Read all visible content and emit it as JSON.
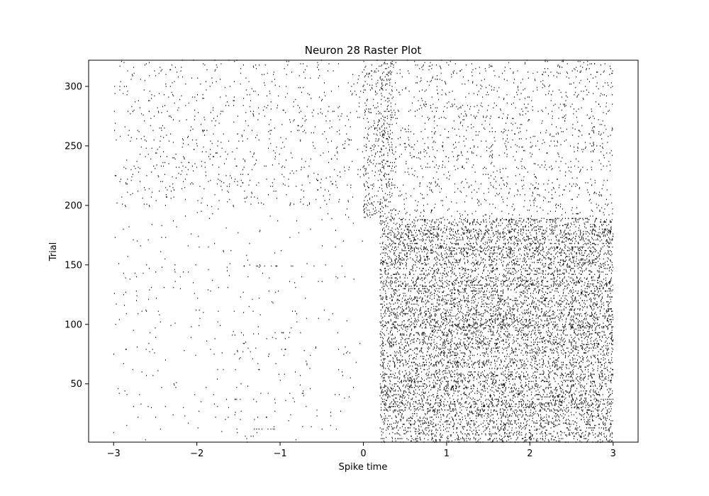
{
  "chart_data": {
    "type": "scatter",
    "subtype": "raster",
    "title": "Neuron 28 Raster Plot",
    "xlabel": "Spike time",
    "ylabel": "Trial",
    "xlim": [
      -3.3,
      3.3
    ],
    "ylim": [
      1,
      322
    ],
    "x_ticks": [
      -3,
      -2,
      -1,
      0,
      1,
      2,
      3
    ],
    "x_tick_labels": [
      "−3",
      "−2",
      "−1",
      "0",
      "1",
      "2",
      "3"
    ],
    "y_ticks": [
      50,
      100,
      150,
      200,
      250,
      300
    ],
    "y_tick_labels": [
      "50",
      "100",
      "150",
      "200",
      "250",
      "300"
    ],
    "grid": false,
    "legend": "none",
    "marker_color": "#000000",
    "trials": {
      "first": 1,
      "last": 322
    },
    "spike_window": [
      -3,
      3
    ],
    "baseline_rate_hz": {
      "trials_1_to_200_pre_stimulus": 0.6,
      "trials_200_to_322_pre_stimulus": 2.0,
      "trials_1_to_190_post_stimulus": 18.0,
      "trials_190_to_322_post_stimulus": 3.5
    },
    "stimulus_onset": 0,
    "response_onset": 0.2,
    "early_burst": {
      "x_range": [
        0,
        0.35
      ],
      "trials": [
        190,
        322
      ]
    }
  }
}
